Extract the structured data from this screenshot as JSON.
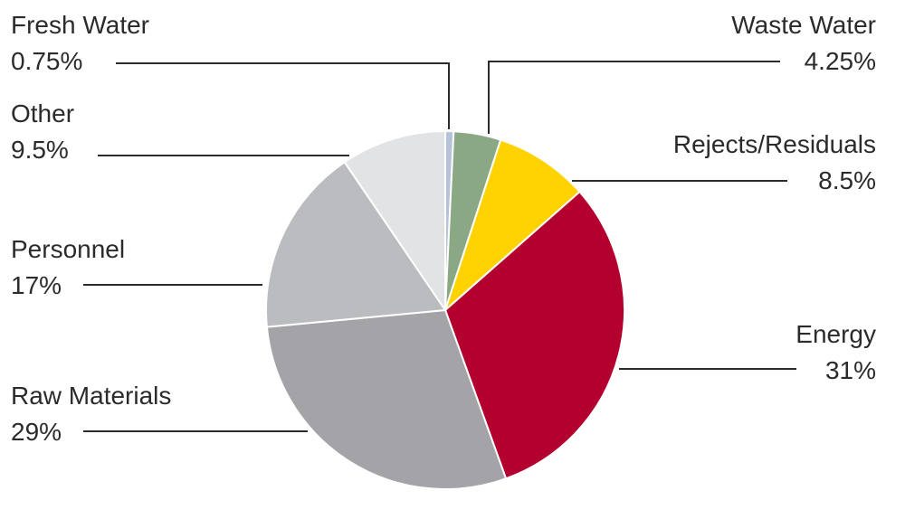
{
  "chart_data": {
    "type": "pie",
    "start": "top",
    "direction": "clockwise",
    "slices": [
      {
        "label": "Fresh Water",
        "value": 0.75,
        "display": "0.75%",
        "color": "#b6c2da"
      },
      {
        "label": "Waste Water",
        "value": 4.25,
        "display": "4.25%",
        "color": "#8ba884"
      },
      {
        "label": "Rejects/Residuals",
        "value": 8.5,
        "display": "8.5%",
        "color": "#ffd200"
      },
      {
        "label": "Energy",
        "value": 31,
        "display": "31%",
        "color": "#b4002f"
      },
      {
        "label": "Raw Materials",
        "value": 29,
        "display": "29%",
        "color": "#a4a4a8"
      },
      {
        "label": "Personnel",
        "value": 17,
        "display": "17%",
        "color": "#bbbcc0"
      },
      {
        "label": "Other",
        "value": 9.5,
        "display": "9.5%",
        "color": "#e2e3e5"
      }
    ]
  }
}
